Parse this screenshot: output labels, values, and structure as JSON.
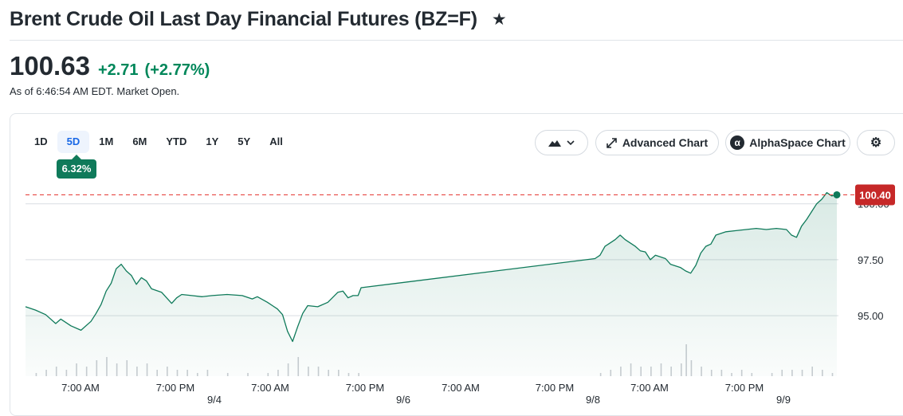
{
  "header": {
    "title": "Brent Crude Oil Last Day Financial Futures (BZ=F)",
    "star_icon": "star-icon"
  },
  "quote": {
    "price": "100.63",
    "change": "+2.71",
    "change_pct": "(+2.77%)",
    "as_of": "As of 6:46:54 AM EDT. Market Open.",
    "up_color": "#00875a"
  },
  "toolbar": {
    "ranges": [
      "1D",
      "5D",
      "1M",
      "6M",
      "YTD",
      "1Y",
      "5Y",
      "All"
    ],
    "active_range": "5D",
    "performance_badge": "6.32%",
    "chart_type_icon": "mountain-chart-icon",
    "advanced_chart_label": "Advanced Chart",
    "alphaspace_label": "AlphaSpace Chart",
    "settings_icon": "gear-icon"
  },
  "chart_data": {
    "type": "area",
    "title": "",
    "xlabel": "",
    "ylabel": "",
    "ylim": [
      92.3,
      101.2
    ],
    "y_ticks": [
      "95.00",
      "97.50",
      "100.00"
    ],
    "x_ticks": [
      "7:00 AM",
      "7:00 PM",
      "7:00 AM",
      "7:00 PM",
      "7:00 AM",
      "7:00 PM",
      "7:00 AM",
      "7:00 PM"
    ],
    "date_labels": [
      "9/4",
      "9/6",
      "9/8",
      "9/9"
    ],
    "last_price_label": "100.40",
    "last_price": 100.4,
    "grid": true,
    "line_color": "#0f7a5a",
    "reference_line_color": "#e53935",
    "series": [
      {
        "points": [
          [
            0,
            95.4
          ],
          [
            2,
            95.25
          ],
          [
            4,
            95.05
          ],
          [
            6,
            94.65
          ],
          [
            7,
            94.85
          ],
          [
            9,
            94.55
          ],
          [
            11,
            94.35
          ],
          [
            13,
            94.75
          ],
          [
            14,
            95.1
          ],
          [
            15,
            95.5
          ],
          [
            16,
            96.1
          ],
          [
            17,
            96.45
          ],
          [
            18,
            97.1
          ],
          [
            19,
            97.3
          ],
          [
            20,
            97.0
          ],
          [
            21,
            96.8
          ],
          [
            22,
            96.4
          ],
          [
            23,
            96.7
          ],
          [
            24,
            96.55
          ],
          [
            25,
            96.2
          ],
          [
            27,
            96.05
          ],
          [
            29,
            95.55
          ],
          [
            30,
            95.8
          ],
          [
            31,
            95.95
          ],
          [
            33,
            95.9
          ],
          [
            35,
            95.85
          ],
          [
            37,
            95.9
          ],
          [
            40,
            95.95
          ],
          [
            43,
            95.9
          ],
          [
            45,
            95.75
          ],
          [
            46,
            95.85
          ],
          [
            48,
            95.6
          ],
          [
            49,
            95.45
          ],
          [
            50,
            95.3
          ],
          [
            51,
            95.05
          ],
          [
            52,
            94.3
          ],
          [
            53,
            93.85
          ],
          [
            54,
            94.5
          ],
          [
            55,
            95.1
          ],
          [
            56,
            95.45
          ],
          [
            58,
            95.4
          ],
          [
            60,
            95.6
          ],
          [
            62,
            96.05
          ],
          [
            63,
            96.1
          ],
          [
            64,
            95.8
          ],
          [
            65,
            95.9
          ],
          [
            66,
            95.9
          ],
          [
            66.6,
            96.25
          ],
          [
            113,
            97.55
          ],
          [
            114,
            97.7
          ],
          [
            115,
            98.1
          ],
          [
            117,
            98.4
          ],
          [
            118,
            98.6
          ],
          [
            119,
            98.4
          ],
          [
            121,
            98.1
          ],
          [
            122,
            97.9
          ],
          [
            123,
            97.85
          ],
          [
            124,
            97.5
          ],
          [
            125,
            97.7
          ],
          [
            127,
            97.55
          ],
          [
            128,
            97.3
          ],
          [
            130,
            97.15
          ],
          [
            131,
            97.0
          ],
          [
            132,
            96.9
          ],
          [
            133,
            97.25
          ],
          [
            134,
            97.8
          ],
          [
            135,
            98.1
          ],
          [
            136,
            98.2
          ],
          [
            137,
            98.6
          ],
          [
            139,
            98.75
          ],
          [
            141,
            98.8
          ],
          [
            143,
            98.85
          ],
          [
            145,
            98.9
          ],
          [
            147,
            98.85
          ],
          [
            149,
            98.9
          ],
          [
            151,
            98.85
          ],
          [
            152,
            98.6
          ],
          [
            153,
            98.5
          ],
          [
            154,
            99.0
          ],
          [
            155,
            99.3
          ],
          [
            156,
            99.65
          ],
          [
            157,
            100.0
          ],
          [
            158,
            100.2
          ],
          [
            159,
            100.5
          ],
          [
            160,
            100.35
          ],
          [
            161,
            100.4
          ]
        ]
      }
    ],
    "volume": [
      [
        2,
        1
      ],
      [
        4,
        2
      ],
      [
        6,
        3
      ],
      [
        8,
        2
      ],
      [
        10,
        4
      ],
      [
        12,
        3
      ],
      [
        14,
        5
      ],
      [
        16,
        6
      ],
      [
        18,
        4
      ],
      [
        20,
        5
      ],
      [
        22,
        3
      ],
      [
        24,
        4
      ],
      [
        26,
        2
      ],
      [
        28,
        3
      ],
      [
        30,
        2
      ],
      [
        32,
        2
      ],
      [
        34,
        1
      ],
      [
        36,
        2
      ],
      [
        40,
        1
      ],
      [
        44,
        1
      ],
      [
        48,
        1
      ],
      [
        50,
        2
      ],
      [
        52,
        4
      ],
      [
        54,
        6
      ],
      [
        56,
        3
      ],
      [
        58,
        3
      ],
      [
        60,
        2
      ],
      [
        62,
        2
      ],
      [
        64,
        1
      ],
      [
        66,
        1
      ],
      [
        114,
        1
      ],
      [
        116,
        2
      ],
      [
        118,
        3
      ],
      [
        120,
        4
      ],
      [
        122,
        3
      ],
      [
        124,
        3
      ],
      [
        126,
        4
      ],
      [
        128,
        3
      ],
      [
        130,
        4
      ],
      [
        131,
        10
      ],
      [
        132,
        5
      ],
      [
        134,
        3
      ],
      [
        136,
        2
      ],
      [
        138,
        2
      ],
      [
        140,
        1
      ],
      [
        142,
        2
      ],
      [
        144,
        1
      ],
      [
        148,
        1
      ],
      [
        150,
        2
      ],
      [
        152,
        2
      ],
      [
        154,
        2
      ],
      [
        156,
        3
      ],
      [
        158,
        2
      ],
      [
        160,
        1
      ]
    ]
  }
}
